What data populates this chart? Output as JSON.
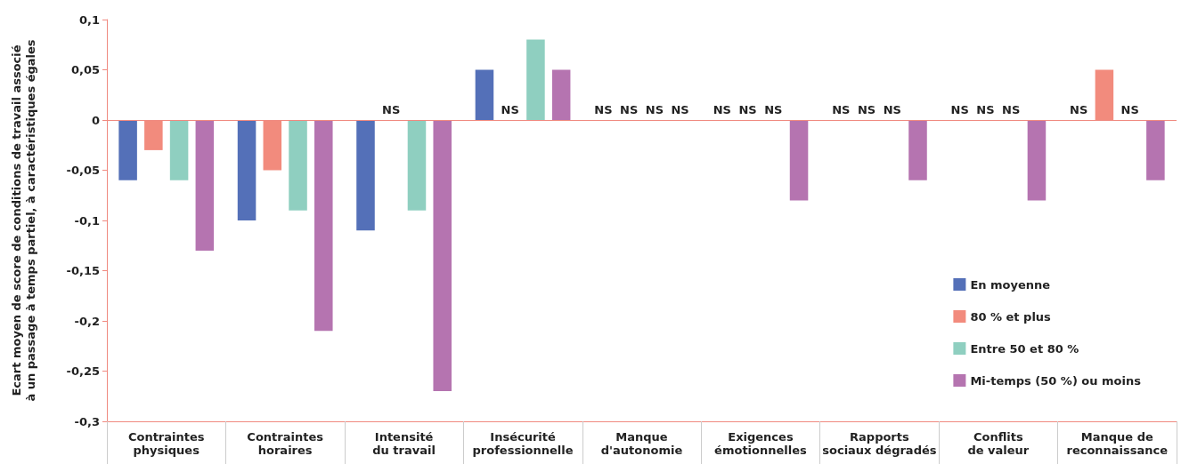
{
  "chart_data": {
    "type": "bar",
    "ylabel": "Ecart moyen de score de conditions de travail associé\nà un passage à temps partiel, à caractéristiques égales",
    "categories": [
      "Contraintes\nphysiques",
      "Contraintes\nhoraires",
      "Intensité\ndu travail",
      "Insécurité\nprofessionnelle",
      "Manque\nd'autonomie",
      "Exigences\némotionnelles",
      "Rapports\nsociaux dégradés",
      "Conflits\nde valeur",
      "Manque de\nreconnaissance"
    ],
    "series": [
      {
        "name": "En moyenne",
        "color": "#5470b8",
        "values": [
          -0.06,
          -0.1,
          -0.11,
          0.05,
          null,
          null,
          null,
          null,
          null
        ],
        "value_labels": [
          null,
          null,
          null,
          null,
          "NS",
          "NS",
          "NS",
          "NS",
          "NS"
        ]
      },
      {
        "name": "80 % et plus",
        "color": "#f28b7d",
        "values": [
          -0.03,
          -0.05,
          null,
          null,
          null,
          null,
          null,
          null,
          0.05
        ],
        "value_labels": [
          null,
          null,
          "NS",
          "NS",
          "NS",
          "NS",
          "NS",
          "NS",
          null
        ]
      },
      {
        "name": "Entre 50 et 80 %",
        "color": "#8fcfc0",
        "values": [
          -0.06,
          -0.09,
          -0.09,
          0.08,
          null,
          null,
          null,
          null,
          null
        ],
        "value_labels": [
          null,
          null,
          null,
          null,
          "NS",
          "NS",
          "NS",
          "NS",
          "NS"
        ]
      },
      {
        "name": "Mi-temps (50 %) ou moins",
        "color": "#b574b0",
        "values": [
          -0.13,
          -0.21,
          -0.27,
          0.05,
          null,
          -0.08,
          -0.06,
          -0.08,
          -0.06
        ],
        "value_labels": [
          null,
          null,
          null,
          null,
          "NS",
          null,
          null,
          null,
          null
        ]
      }
    ],
    "ylim": [
      -0.3,
      0.1
    ],
    "yticks": [
      {
        "value": -0.3,
        "label": "-0,3"
      },
      {
        "value": -0.25,
        "label": "-0,25"
      },
      {
        "value": -0.2,
        "label": "-0,2"
      },
      {
        "value": -0.15,
        "label": "-0,15"
      },
      {
        "value": -0.1,
        "label": "-0,1"
      },
      {
        "value": -0.05,
        "label": "-0,05"
      },
      {
        "value": 0,
        "label": "0"
      },
      {
        "value": 0.05,
        "label": "0,05"
      },
      {
        "value": 0.1,
        "label": "0,1"
      }
    ],
    "ref_lines": [
      {
        "axis": "y",
        "value": 0,
        "color": "#f08a80"
      }
    ],
    "grid": false,
    "legend": "right"
  }
}
